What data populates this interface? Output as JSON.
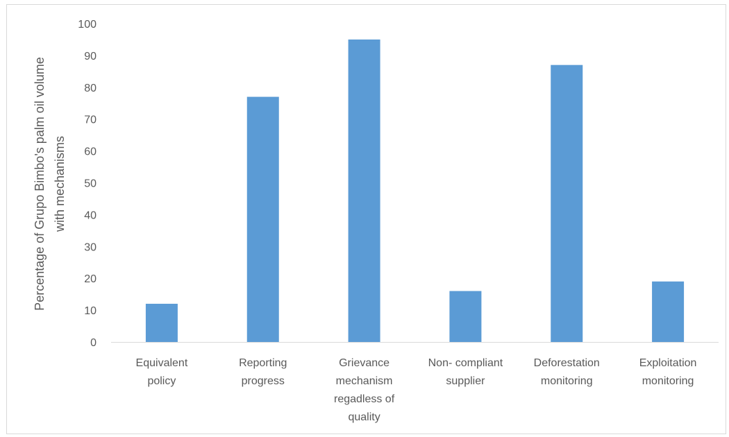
{
  "chart_data": {
    "type": "bar",
    "title": "",
    "xlabel": "",
    "ylabel_lines": [
      "Percentage of Grupo Bimbo's palm oil volume",
      "with mechanisms"
    ],
    "categories": [
      [
        "Equivalent",
        "policy"
      ],
      [
        "Reporting",
        "progress"
      ],
      [
        "Grievance",
        "mechanism",
        "regadless of",
        "quality"
      ],
      [
        "Non- compliant",
        "supplier"
      ],
      [
        "Deforestation",
        "monitoring"
      ],
      [
        "Exploitation",
        "monitoring"
      ]
    ],
    "values": [
      12,
      77,
      95,
      16,
      87,
      19
    ],
    "ylim": [
      0,
      100
    ],
    "yticks": [
      0,
      10,
      20,
      30,
      40,
      50,
      60,
      70,
      80,
      90,
      100
    ],
    "grid": false,
    "legend": "none",
    "bar_color": "#5b9bd5",
    "axis_color": "#d9d9d9",
    "text_color": "#595959"
  }
}
